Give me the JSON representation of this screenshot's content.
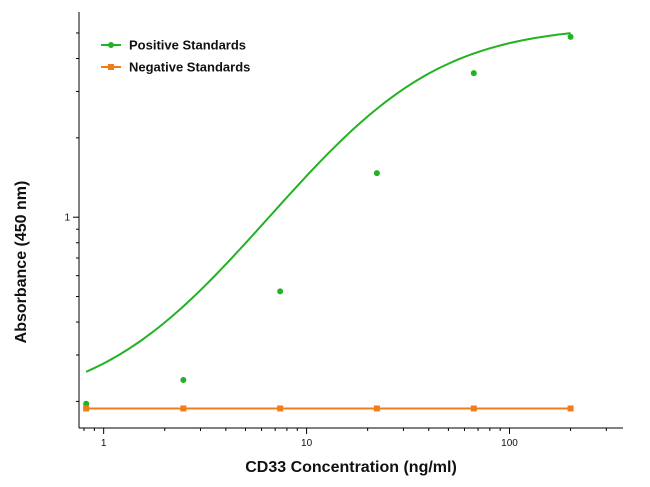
{
  "chart_data": {
    "type": "line",
    "title": "",
    "xlabel": "CD33 Concentration (ng/ml)",
    "ylabel": "Absorbance (450 nm)",
    "x_scale": "log",
    "y_scale": "log",
    "xlim": [
      0.8,
      320
    ],
    "ylim": [
      0.17,
      5.6
    ],
    "x_ticks": [
      {
        "value": 1,
        "label": "1"
      },
      {
        "value": 10,
        "label": "10"
      },
      {
        "value": 100,
        "label": "100"
      }
    ],
    "y_ticks": [
      {
        "value": 1,
        "label": "1"
      }
    ],
    "grid": false,
    "legend_position": "top-left",
    "series": [
      {
        "name": "Positive Standards",
        "color": "#22b222",
        "marker": "circle",
        "points": [
          {
            "x": 0.82,
            "y": 0.196
          },
          {
            "x": 2.47,
            "y": 0.241
          },
          {
            "x": 7.41,
            "y": 0.523
          },
          {
            "x": 22.2,
            "y": 1.47
          },
          {
            "x": 66.7,
            "y": 3.52
          },
          {
            "x": 200,
            "y": 4.83
          }
        ],
        "curve_params": {
          "bottom": 0.188,
          "top": 5.35,
          "ec50": 25,
          "hill": 1.25
        }
      },
      {
        "name": "Negative Standards",
        "color": "#f07c1c",
        "marker": "square",
        "points": [
          {
            "x": 0.82,
            "y": 0.188
          },
          {
            "x": 2.47,
            "y": 0.188
          },
          {
            "x": 7.41,
            "y": 0.188
          },
          {
            "x": 22.2,
            "y": 0.188
          },
          {
            "x": 66.7,
            "y": 0.188
          },
          {
            "x": 200,
            "y": 0.188
          }
        ]
      }
    ]
  }
}
